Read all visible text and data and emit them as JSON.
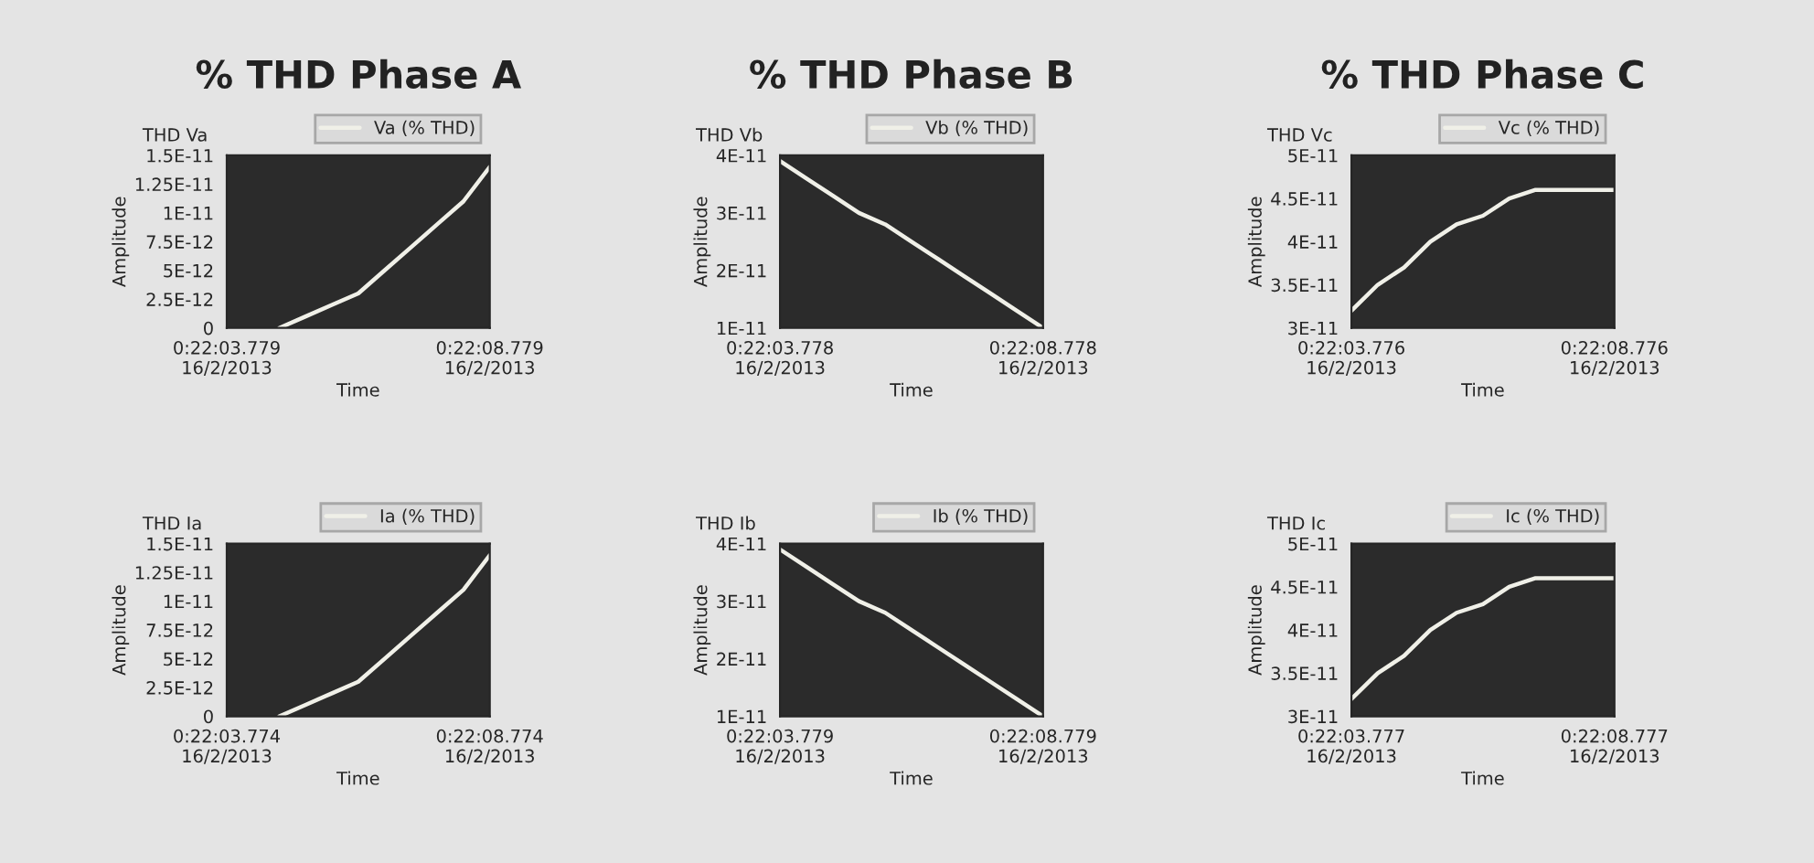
{
  "chart_data": [
    {
      "type": "line",
      "title": "% THD Phase A",
      "subtitle": "THD Va",
      "xlabel": "Time",
      "ylabel": "Amplitude",
      "legend": "top right",
      "categories": [
        "0:22:03.779\n16/2/2013",
        null,
        null,
        null,
        null,
        null,
        null,
        null,
        null,
        null,
        "0:22:08.779\n16/2/2013"
      ],
      "ylim": [
        0,
        1.5e-11
      ],
      "yticks": [
        {
          "value": 0,
          "label": "0"
        },
        {
          "value": 2.5e-12,
          "label": "2.5E-12"
        },
        {
          "value": 5e-12,
          "label": "5E-12"
        },
        {
          "value": 7.5e-12,
          "label": "7.5E-12"
        },
        {
          "value": 1e-11,
          "label": "1E-11"
        },
        {
          "value": 1.25e-11,
          "label": "1.25E-11"
        },
        {
          "value": 1.5e-11,
          "label": "1.5E-11"
        }
      ],
      "series": [
        {
          "name": "Va (% THD)",
          "color": "#f0f0e8",
          "values": [
            null,
            null,
            0,
            1e-12,
            2e-12,
            3e-12,
            5e-12,
            7e-12,
            9e-12,
            1.1e-11,
            1.4e-11
          ]
        }
      ]
    },
    {
      "type": "line",
      "title": "% THD Phase B",
      "subtitle": "THD Vb",
      "xlabel": "Time",
      "ylabel": "Amplitude",
      "legend": "top right",
      "categories": [
        "0:22:03.778\n16/2/2013",
        null,
        null,
        null,
        null,
        null,
        null,
        null,
        null,
        null,
        "0:22:08.778\n16/2/2013"
      ],
      "ylim": [
        1e-11,
        4e-11
      ],
      "yticks": [
        {
          "value": 1e-11,
          "label": "1E-11"
        },
        {
          "value": 2e-11,
          "label": "2E-11"
        },
        {
          "value": 3e-11,
          "label": "3E-11"
        },
        {
          "value": 4e-11,
          "label": "4E-11"
        }
      ],
      "series": [
        {
          "name": "Vb (% THD)",
          "color": "#f0f0e8",
          "values": [
            3.9e-11,
            3.6e-11,
            3.3e-11,
            3e-11,
            2.8e-11,
            2.5e-11,
            2.2e-11,
            1.9e-11,
            1.6e-11,
            1.3e-11,
            1e-11
          ]
        }
      ]
    },
    {
      "type": "line",
      "title": "% THD Phase C",
      "subtitle": "THD Vc",
      "xlabel": "Time",
      "ylabel": "Amplitude",
      "legend": "top right",
      "categories": [
        "0:22:03.776\n16/2/2013",
        null,
        null,
        null,
        null,
        null,
        null,
        null,
        null,
        null,
        "0:22:08.776\n16/2/2013"
      ],
      "ylim": [
        3e-11,
        5e-11
      ],
      "yticks": [
        {
          "value": 3e-11,
          "label": "3E-11"
        },
        {
          "value": 3.5e-11,
          "label": "3.5E-11"
        },
        {
          "value": 4e-11,
          "label": "4E-11"
        },
        {
          "value": 4.5e-11,
          "label": "4.5E-11"
        },
        {
          "value": 5e-11,
          "label": "5E-11"
        }
      ],
      "series": [
        {
          "name": "Vc (% THD)",
          "color": "#f0f0e8",
          "values": [
            3.2e-11,
            3.5e-11,
            3.7e-11,
            4e-11,
            4.2e-11,
            4.3e-11,
            4.5e-11,
            4.6e-11,
            4.6e-11,
            4.6e-11,
            4.6e-11
          ]
        }
      ]
    },
    {
      "type": "line",
      "subtitle": "THD Ia",
      "xlabel": "Time",
      "ylabel": "Amplitude",
      "legend": "top right",
      "categories": [
        "0:22:03.774\n16/2/2013",
        null,
        null,
        null,
        null,
        null,
        null,
        null,
        null,
        null,
        "0:22:08.774\n16/2/2013"
      ],
      "ylim": [
        0,
        1.5e-11
      ],
      "yticks": [
        {
          "value": 0,
          "label": "0"
        },
        {
          "value": 2.5e-12,
          "label": "2.5E-12"
        },
        {
          "value": 5e-12,
          "label": "5E-12"
        },
        {
          "value": 7.5e-12,
          "label": "7.5E-12"
        },
        {
          "value": 1e-11,
          "label": "1E-11"
        },
        {
          "value": 1.25e-11,
          "label": "1.25E-11"
        },
        {
          "value": 1.5e-11,
          "label": "1.5E-11"
        }
      ],
      "series": [
        {
          "name": "Ia (% THD)",
          "color": "#f0f0e8",
          "values": [
            null,
            null,
            0,
            1e-12,
            2e-12,
            3e-12,
            5e-12,
            7e-12,
            9e-12,
            1.1e-11,
            1.4e-11
          ]
        }
      ]
    },
    {
      "type": "line",
      "subtitle": "THD Ib",
      "xlabel": "Time",
      "ylabel": "Amplitude",
      "legend": "top right",
      "categories": [
        "0:22:03.779\n16/2/2013",
        null,
        null,
        null,
        null,
        null,
        null,
        null,
        null,
        null,
        "0:22:08.779\n16/2/2013"
      ],
      "ylim": [
        1e-11,
        4e-11
      ],
      "yticks": [
        {
          "value": 1e-11,
          "label": "1E-11"
        },
        {
          "value": 2e-11,
          "label": "2E-11"
        },
        {
          "value": 3e-11,
          "label": "3E-11"
        },
        {
          "value": 4e-11,
          "label": "4E-11"
        }
      ],
      "series": [
        {
          "name": "Ib (% THD)",
          "color": "#f0f0e8",
          "values": [
            3.9e-11,
            3.6e-11,
            3.3e-11,
            3e-11,
            2.8e-11,
            2.5e-11,
            2.2e-11,
            1.9e-11,
            1.6e-11,
            1.3e-11,
            1e-11
          ]
        }
      ]
    },
    {
      "type": "line",
      "subtitle": "THD Ic",
      "xlabel": "Time",
      "ylabel": "Amplitude",
      "legend": "top right",
      "categories": [
        "0:22:03.777\n16/2/2013",
        null,
        null,
        null,
        null,
        null,
        null,
        null,
        null,
        null,
        "0:22:08.777\n16/2/2013"
      ],
      "ylim": [
        3e-11,
        5e-11
      ],
      "yticks": [
        {
          "value": 3e-11,
          "label": "3E-11"
        },
        {
          "value": 3.5e-11,
          "label": "3.5E-11"
        },
        {
          "value": 4e-11,
          "label": "4E-11"
        },
        {
          "value": 4.5e-11,
          "label": "4.5E-11"
        },
        {
          "value": 5e-11,
          "label": "5E-11"
        }
      ],
      "series": [
        {
          "name": "Ic (% THD)",
          "color": "#f0f0e8",
          "values": [
            3.2e-11,
            3.5e-11,
            3.7e-11,
            4e-11,
            4.2e-11,
            4.3e-11,
            4.5e-11,
            4.6e-11,
            4.6e-11,
            4.6e-11,
            4.6e-11
          ]
        }
      ]
    }
  ]
}
